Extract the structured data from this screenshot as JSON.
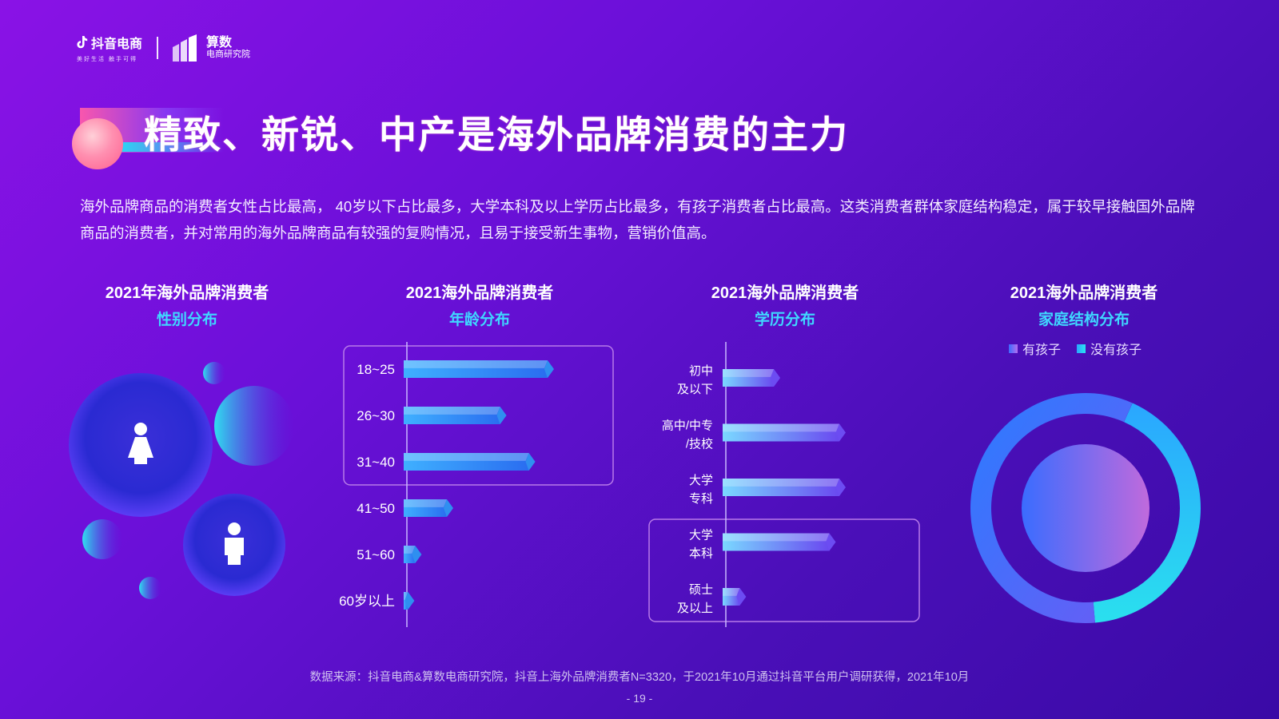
{
  "header": {
    "brand_a": "抖音电商",
    "brand_a_tagline": "美好生活 触手可得",
    "brand_b_line1": "算数",
    "brand_b_line2": "电商研究院"
  },
  "title": "精致、新锐、中产是海外品牌消费的主力",
  "intro": "海外品牌商品的消费者女性占比最高， 40岁以下占比最多，大学本科及以上学历占比最多，有孩子消费者占比最高。这类消费者群体家庭结构稳定，属于较早接触国外品牌商品的消费者，并对常用的海外品牌商品有较强的复购情况，且易于接受新生事物，营销价值高。",
  "charts": [
    {
      "title": "2021年海外品牌消费者",
      "subtitle": "性别分布"
    },
    {
      "title": "2021海外品牌消费者",
      "subtitle": "年龄分布"
    },
    {
      "title": "2021海外品牌消费者",
      "subtitle": "学历分布"
    },
    {
      "title": "2021海外品牌消费者",
      "subtitle": "家庭结构分布"
    }
  ],
  "chart_data": [
    {
      "type": "bubble",
      "categories": [
        "女",
        "男"
      ],
      "values": [
        0.65,
        0.35
      ]
    },
    {
      "type": "bar",
      "orientation": "horizontal",
      "categories": [
        "18~25",
        "26~30",
        "31~40",
        "41~50",
        "51~60",
        "60岁以上"
      ],
      "values": [
        100,
        67,
        87,
        30,
        8,
        3
      ],
      "highlight": [
        "18~25",
        "26~30",
        "31~40"
      ]
    },
    {
      "type": "bar",
      "orientation": "horizontal",
      "categories": [
        "初中\n及以下",
        "高中/中专\n/技校",
        "大学\n专科",
        "大学\n本科",
        "硕士\n及以上"
      ],
      "values": [
        36,
        82,
        82,
        75,
        12
      ],
      "highlight": [
        "大学\n本科",
        "硕士\n及以上"
      ]
    },
    {
      "type": "pie",
      "legend": [
        "有孩子",
        "没有孩子"
      ],
      "legend_position": "top",
      "values": [
        0.58,
        0.42
      ]
    }
  ],
  "colors": {
    "accent_cyan": "#3fd8ff",
    "bar_blue": "#2f8ff0",
    "bar_purple": "#6c4cf2"
  },
  "footer": {
    "source": "数据来源：抖音电商&算数电商研究院，抖音上海外品牌消费者N=3320，于2021年10月通过抖音平台用户调研获得，2021年10月",
    "page": "- 19 -"
  }
}
